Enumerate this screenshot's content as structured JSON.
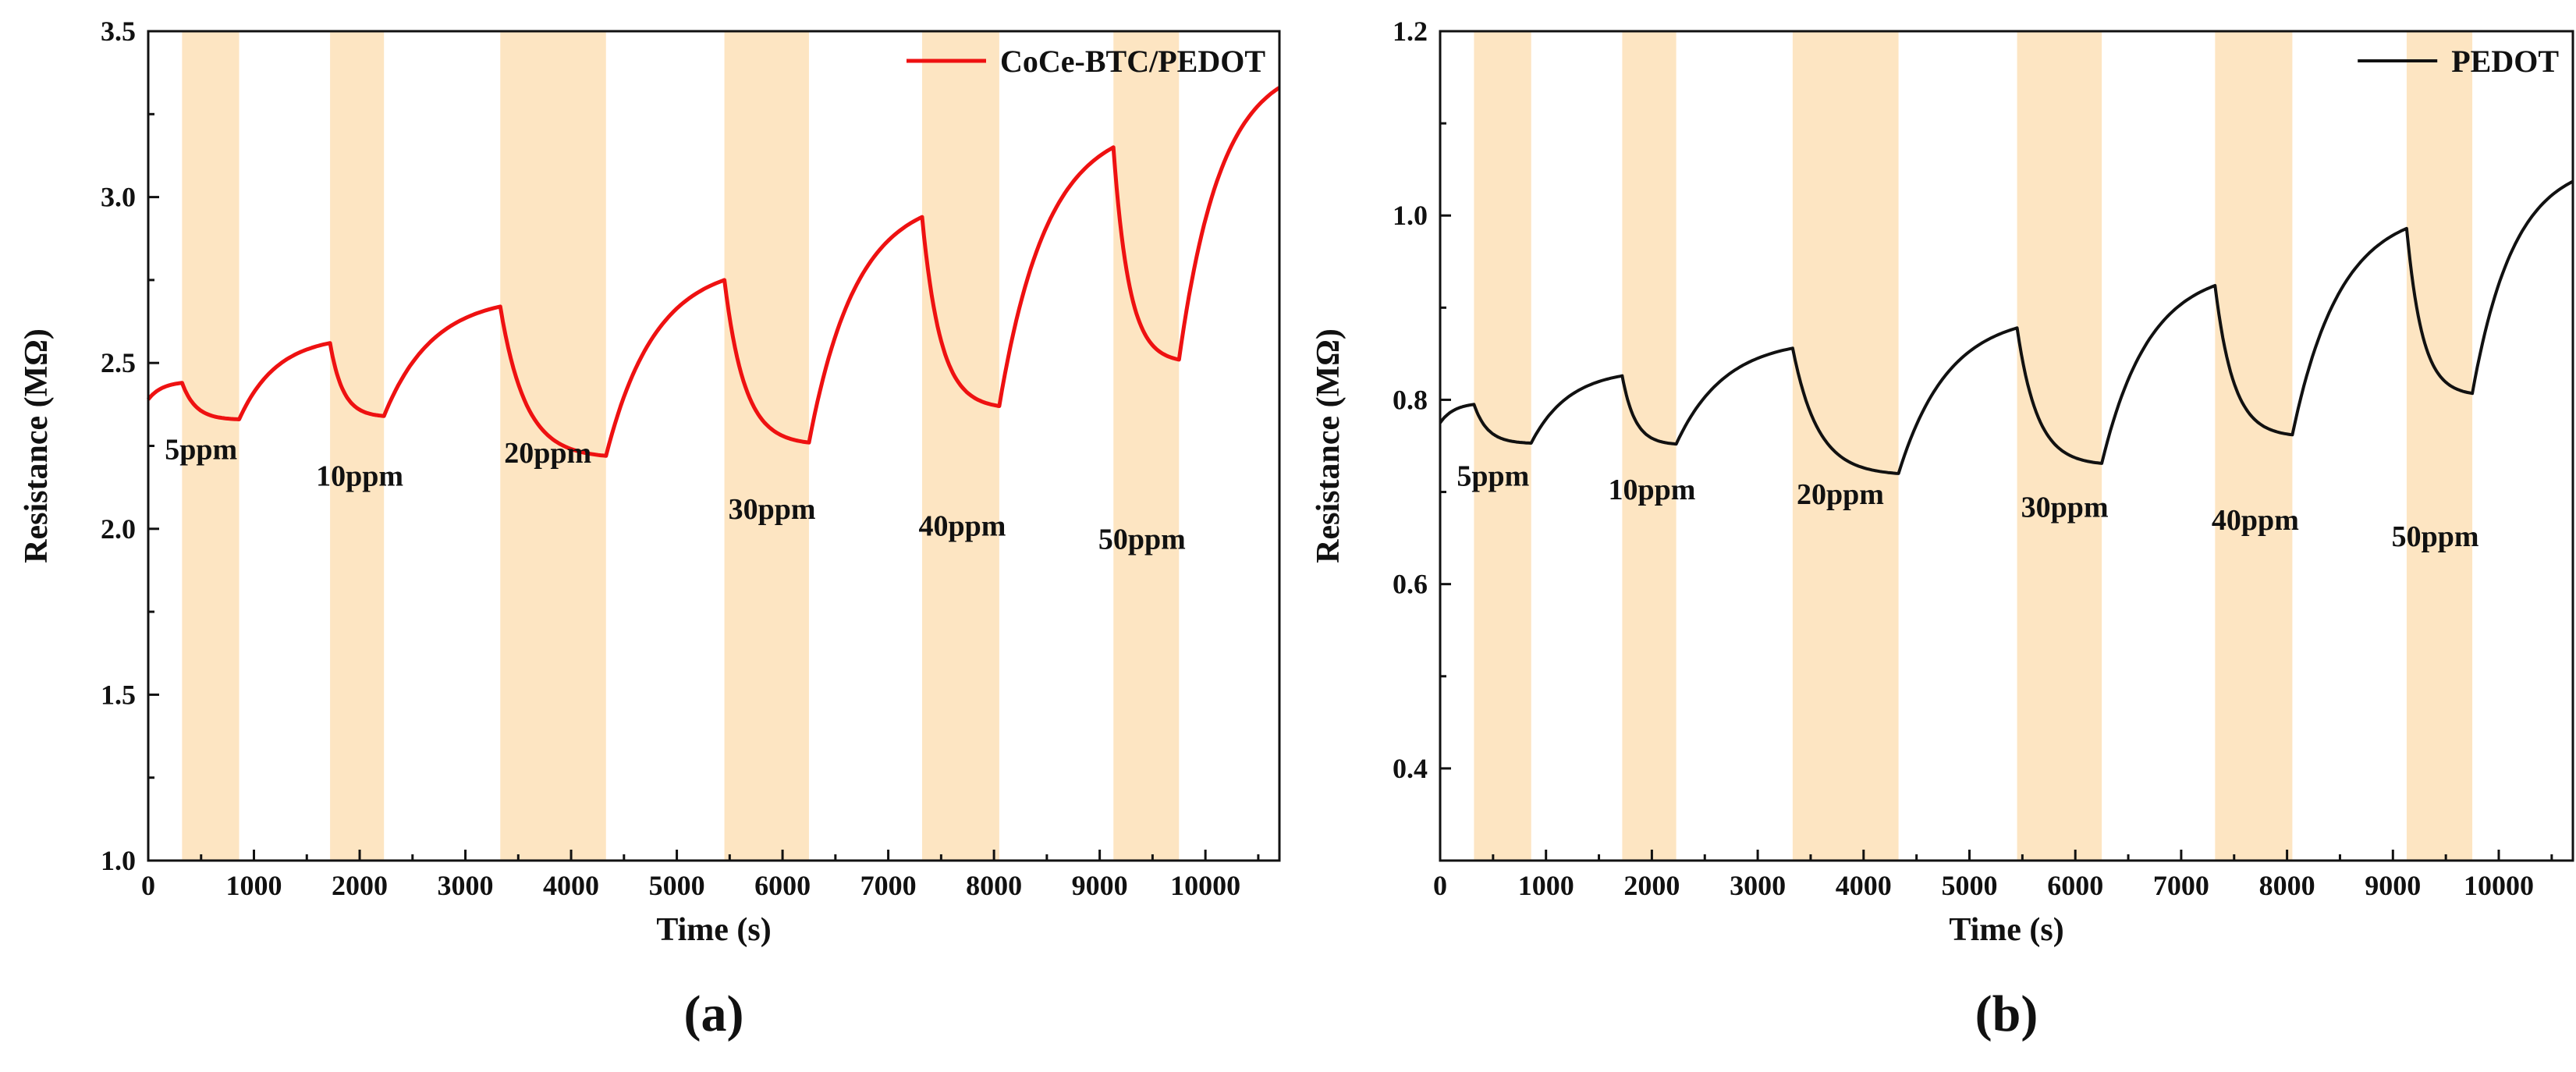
{
  "colors": {
    "band": "#fde5c2",
    "series_a": "#ee1111",
    "series_b": "#111111"
  },
  "chart_data": [
    {
      "type": "line",
      "panel_label": "(a)",
      "xlabel": "Time (s)",
      "ylabel": "Resistance (MΩ)",
      "xlim": [
        0,
        10700
      ],
      "ylim": [
        1.0,
        3.5
      ],
      "xticks": [
        0,
        1000,
        2000,
        3000,
        4000,
        5000,
        6000,
        7000,
        8000,
        9000,
        10000
      ],
      "yticks": [
        1.0,
        1.5,
        2.0,
        2.5,
        3.0,
        3.5
      ],
      "ytick_labels": [
        "1.0",
        "1.5",
        "2.0",
        "2.5",
        "3.0",
        "3.5"
      ],
      "legend": {
        "label": "CoCe-BTC/PEDOT",
        "position": "top-right"
      },
      "shaded_intervals": [
        [
          320,
          860
        ],
        [
          1720,
          2230
        ],
        [
          3330,
          4330
        ],
        [
          5450,
          6250
        ],
        [
          7320,
          8050
        ],
        [
          9130,
          9750
        ]
      ],
      "annotations": [
        {
          "text": "5ppm",
          "x": 500,
          "y": 2.21
        },
        {
          "text": "10ppm",
          "x": 2000,
          "y": 2.13
        },
        {
          "text": "20ppm",
          "x": 3780,
          "y": 2.2
        },
        {
          "text": "30ppm",
          "x": 5900,
          "y": 2.03
        },
        {
          "text": "40ppm",
          "x": 7700,
          "y": 1.98
        },
        {
          "text": "50ppm",
          "x": 9400,
          "y": 1.94
        }
      ],
      "series": [
        {
          "name": "CoCe-BTC/PEDOT",
          "points": [
            [
              0,
              2.39
            ],
            [
              320,
              2.44
            ],
            [
              860,
              2.33
            ],
            [
              1720,
              2.56
            ],
            [
              2230,
              2.34
            ],
            [
              3330,
              2.67
            ],
            [
              4330,
              2.22
            ],
            [
              5450,
              2.75
            ],
            [
              6250,
              2.26
            ],
            [
              7320,
              2.94
            ],
            [
              8050,
              2.37
            ],
            [
              9130,
              3.15
            ],
            [
              9750,
              2.51
            ],
            [
              10700,
              3.33
            ]
          ]
        }
      ]
    },
    {
      "type": "line",
      "panel_label": "(b)",
      "xlabel": "Time (s)",
      "ylabel": "Resistance (MΩ)",
      "xlim": [
        0,
        10700
      ],
      "ylim": [
        0.3,
        1.2
      ],
      "xticks": [
        0,
        1000,
        2000,
        3000,
        4000,
        5000,
        6000,
        7000,
        8000,
        9000,
        10000
      ],
      "yticks": [
        0.4,
        0.6,
        0.8,
        1.0,
        1.2
      ],
      "ytick_labels": [
        "0.4",
        "0.6",
        "0.8",
        "1.0",
        "1.2"
      ],
      "legend": {
        "label": "PEDOT",
        "position": "top-right"
      },
      "shaded_intervals": [
        [
          320,
          860
        ],
        [
          1720,
          2230
        ],
        [
          3330,
          4330
        ],
        [
          5450,
          6250
        ],
        [
          7320,
          8050
        ],
        [
          9130,
          9750
        ]
      ],
      "annotations": [
        {
          "text": "5ppm",
          "x": 500,
          "y": 0.707
        },
        {
          "text": "10ppm",
          "x": 2000,
          "y": 0.692
        },
        {
          "text": "20ppm",
          "x": 3780,
          "y": 0.687
        },
        {
          "text": "30ppm",
          "x": 5900,
          "y": 0.673
        },
        {
          "text": "40ppm",
          "x": 7700,
          "y": 0.659
        },
        {
          "text": "50ppm",
          "x": 9400,
          "y": 0.641
        }
      ],
      "series": [
        {
          "name": "PEDOT",
          "points": [
            [
              0,
              0.775
            ],
            [
              320,
              0.795
            ],
            [
              860,
              0.753
            ],
            [
              1720,
              0.826
            ],
            [
              2230,
              0.752
            ],
            [
              3330,
              0.856
            ],
            [
              4330,
              0.72
            ],
            [
              5450,
              0.878
            ],
            [
              6250,
              0.731
            ],
            [
              7320,
              0.924
            ],
            [
              8050,
              0.762
            ],
            [
              9130,
              0.986
            ],
            [
              9750,
              0.807
            ],
            [
              10700,
              1.037
            ]
          ]
        }
      ]
    }
  ]
}
